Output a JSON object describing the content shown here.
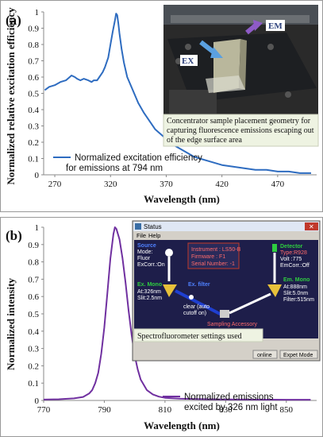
{
  "chart_data": [
    {
      "type": "line",
      "panel_label": "(a)",
      "xlabel": "Wavelength  (nm)",
      "ylabel": "Normalized relative excitation efficiency",
      "xlim": [
        260,
        505
      ],
      "ylim": [
        0,
        1
      ],
      "xticks": [
        270,
        320,
        370,
        420,
        470
      ],
      "yticks": [
        0,
        0.1,
        0.2,
        0.3,
        0.4,
        0.5,
        0.6,
        0.7,
        0.8,
        0.9,
        1
      ],
      "ytick_labels": [
        "0",
        "0.1",
        "0.2",
        "0.3",
        "0.4",
        "0.5",
        "0.6",
        "0.7",
        "0.8",
        "0.9",
        "1"
      ],
      "grid": false,
      "legend": {
        "position": "bottom-center",
        "lines": [
          "Normalized excitation efficiency",
          "for emissions at 794 nm"
        ]
      },
      "series": [
        {
          "name": "Normalized excitation efficiency for emissions at 794 nm",
          "color": "#2e6cc0",
          "x": [
            261,
            265,
            270,
            275,
            280,
            285,
            288,
            290,
            293,
            296,
            300,
            303,
            305,
            308,
            310,
            313,
            315,
            318,
            320,
            322,
            324,
            325,
            326,
            327,
            328,
            330,
            332,
            335,
            340,
            345,
            350,
            355,
            360,
            365,
            370,
            375,
            380,
            385,
            390,
            395,
            400,
            410,
            420,
            430,
            440,
            450,
            460,
            470,
            480,
            490,
            500
          ],
          "y": [
            0.52,
            0.54,
            0.55,
            0.57,
            0.58,
            0.61,
            0.6,
            0.59,
            0.58,
            0.59,
            0.58,
            0.57,
            0.58,
            0.58,
            0.6,
            0.63,
            0.66,
            0.72,
            0.8,
            0.88,
            0.95,
            0.99,
            0.98,
            0.93,
            0.87,
            0.77,
            0.69,
            0.6,
            0.52,
            0.44,
            0.38,
            0.33,
            0.28,
            0.25,
            0.22,
            0.19,
            0.17,
            0.15,
            0.13,
            0.11,
            0.1,
            0.08,
            0.06,
            0.05,
            0.04,
            0.03,
            0.03,
            0.02,
            0.02,
            0.01,
            0.01
          ]
        }
      ],
      "inset": {
        "labels": [
          "EM",
          "EX"
        ],
        "caption": [
          "Concentrator sample placement geometry for",
          "capturing fluorescence emissions escaping out",
          "of the edge surface area"
        ]
      }
    },
    {
      "type": "line",
      "panel_label": "(b)",
      "xlabel": "Wavelength  (nm)",
      "ylabel": "Normalized intensity",
      "xlim": [
        770,
        860
      ],
      "ylim": [
        0,
        1
      ],
      "xticks": [
        770,
        790,
        810,
        830,
        850
      ],
      "yticks": [
        0,
        0.1,
        0.2,
        0.3,
        0.4,
        0.5,
        0.6,
        0.7,
        0.8,
        0.9,
        1
      ],
      "ytick_labels": [
        "0",
        "0.1",
        "0.2",
        "0.3",
        "0.4",
        "0.5",
        "0.6",
        "0.7",
        "0.8",
        "0.9",
        "1"
      ],
      "grid": false,
      "legend": {
        "position": "bottom-right",
        "lines": [
          "Normalized emissions",
          "excited by 326 nm light"
        ]
      },
      "series": [
        {
          "name": "Normalized emissions excited by 326 nm light",
          "color": "#7030a0",
          "x": [
            770,
            775,
            780,
            783,
            785,
            786,
            787,
            788,
            789,
            790,
            791,
            792,
            793,
            793.5,
            794,
            795,
            796,
            797,
            798,
            799,
            800,
            801,
            802,
            804,
            806,
            808,
            810,
            815,
            820,
            830,
            840,
            850,
            858
          ],
          "y": [
            0.005,
            0.007,
            0.012,
            0.02,
            0.04,
            0.06,
            0.1,
            0.16,
            0.27,
            0.42,
            0.62,
            0.82,
            0.96,
            1.0,
            0.99,
            0.93,
            0.82,
            0.68,
            0.52,
            0.38,
            0.26,
            0.18,
            0.12,
            0.06,
            0.035,
            0.022,
            0.015,
            0.01,
            0.008,
            0.006,
            0.005,
            0.004,
            0.004
          ]
        }
      ],
      "inset": {
        "window_title": "Status",
        "menu": [
          "File",
          "Help"
        ],
        "source": {
          "title": "Source",
          "lines": [
            "Mode:",
            "Fluor",
            "ExCorr.:On"
          ]
        },
        "instrument": {
          "lines": [
            "Instrument :      LS50-B",
            "Firmware :        F1",
            "Serial Number:   -1"
          ]
        },
        "detector": {
          "title": "Detector",
          "type": "Type:R928",
          "lines": [
            "Volt :775",
            "EmCorr.:Off"
          ]
        },
        "ex_mono": {
          "title": "Ex. Mono",
          "lines": [
            "At:326nm",
            "Slit:2.5nm"
          ]
        },
        "ex_filter": "Ex. filter",
        "clear_label": [
          "clear (auto",
          "cutoff on)"
        ],
        "em_mono": {
          "title": "Em. Mono",
          "lines": [
            "At:888nm",
            "Slit:5.0nm",
            "Filter:515nm"
          ]
        },
        "sampling": "Sampling Accessory",
        "caption": "Spectrofluorometer settings used",
        "status_bar": [
          "online",
          "Expet Mode"
        ]
      }
    }
  ]
}
